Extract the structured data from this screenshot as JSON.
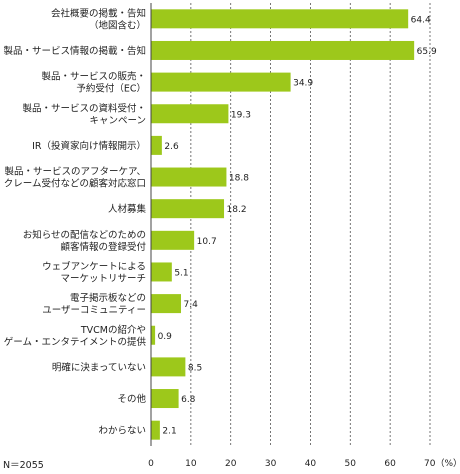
{
  "chart_data": {
    "type": "bar",
    "orientation": "horizontal",
    "categories": [
      [
        "会社概要の掲載・告知",
        "（地図含む）"
      ],
      [
        "製品・サービス情報の掲載・告知"
      ],
      [
        "製品・サービスの販売・",
        "予約受付（EC）"
      ],
      [
        "製品・サービスの資料受付・",
        "キャンペーン"
      ],
      [
        "IR（投資家向け情報開示）"
      ],
      [
        "製品・サービスのアフターケア、",
        "クレーム受付などの顧客対応窓口"
      ],
      [
        "人材募集"
      ],
      [
        "お知らせの配信などのための",
        "顧客情報の登録受付"
      ],
      [
        "ウェブアンケートによる",
        "マーケットリサーチ"
      ],
      [
        "電子掲示板などの",
        "ユーザーコミュニティー"
      ],
      [
        "TVCMの紹介や",
        "ゲーム・エンタテイメントの提供"
      ],
      [
        "明確に決まっていない"
      ],
      [
        "その他"
      ],
      [
        "わからない"
      ]
    ],
    "values": [
      64.4,
      65.9,
      34.9,
      19.3,
      2.6,
      18.8,
      18.2,
      10.7,
      5.1,
      7.4,
      0.9,
      8.5,
      6.8,
      2.1
    ],
    "value_labels": [
      "64.4",
      "65.9",
      "34.9",
      "19.3",
      "2.6",
      "18.8",
      "18.2",
      "10.7",
      "5.1",
      "7.4",
      "0.9",
      "8.5",
      "6.8",
      "2.1"
    ],
    "xticks": [
      "0",
      "10",
      "20",
      "30",
      "40",
      "50",
      "60",
      "70（%）"
    ],
    "xlim": [
      0,
      70
    ],
    "grid": "vertical dashed",
    "bar_color": "#9dc81b",
    "note": "N＝2055"
  }
}
